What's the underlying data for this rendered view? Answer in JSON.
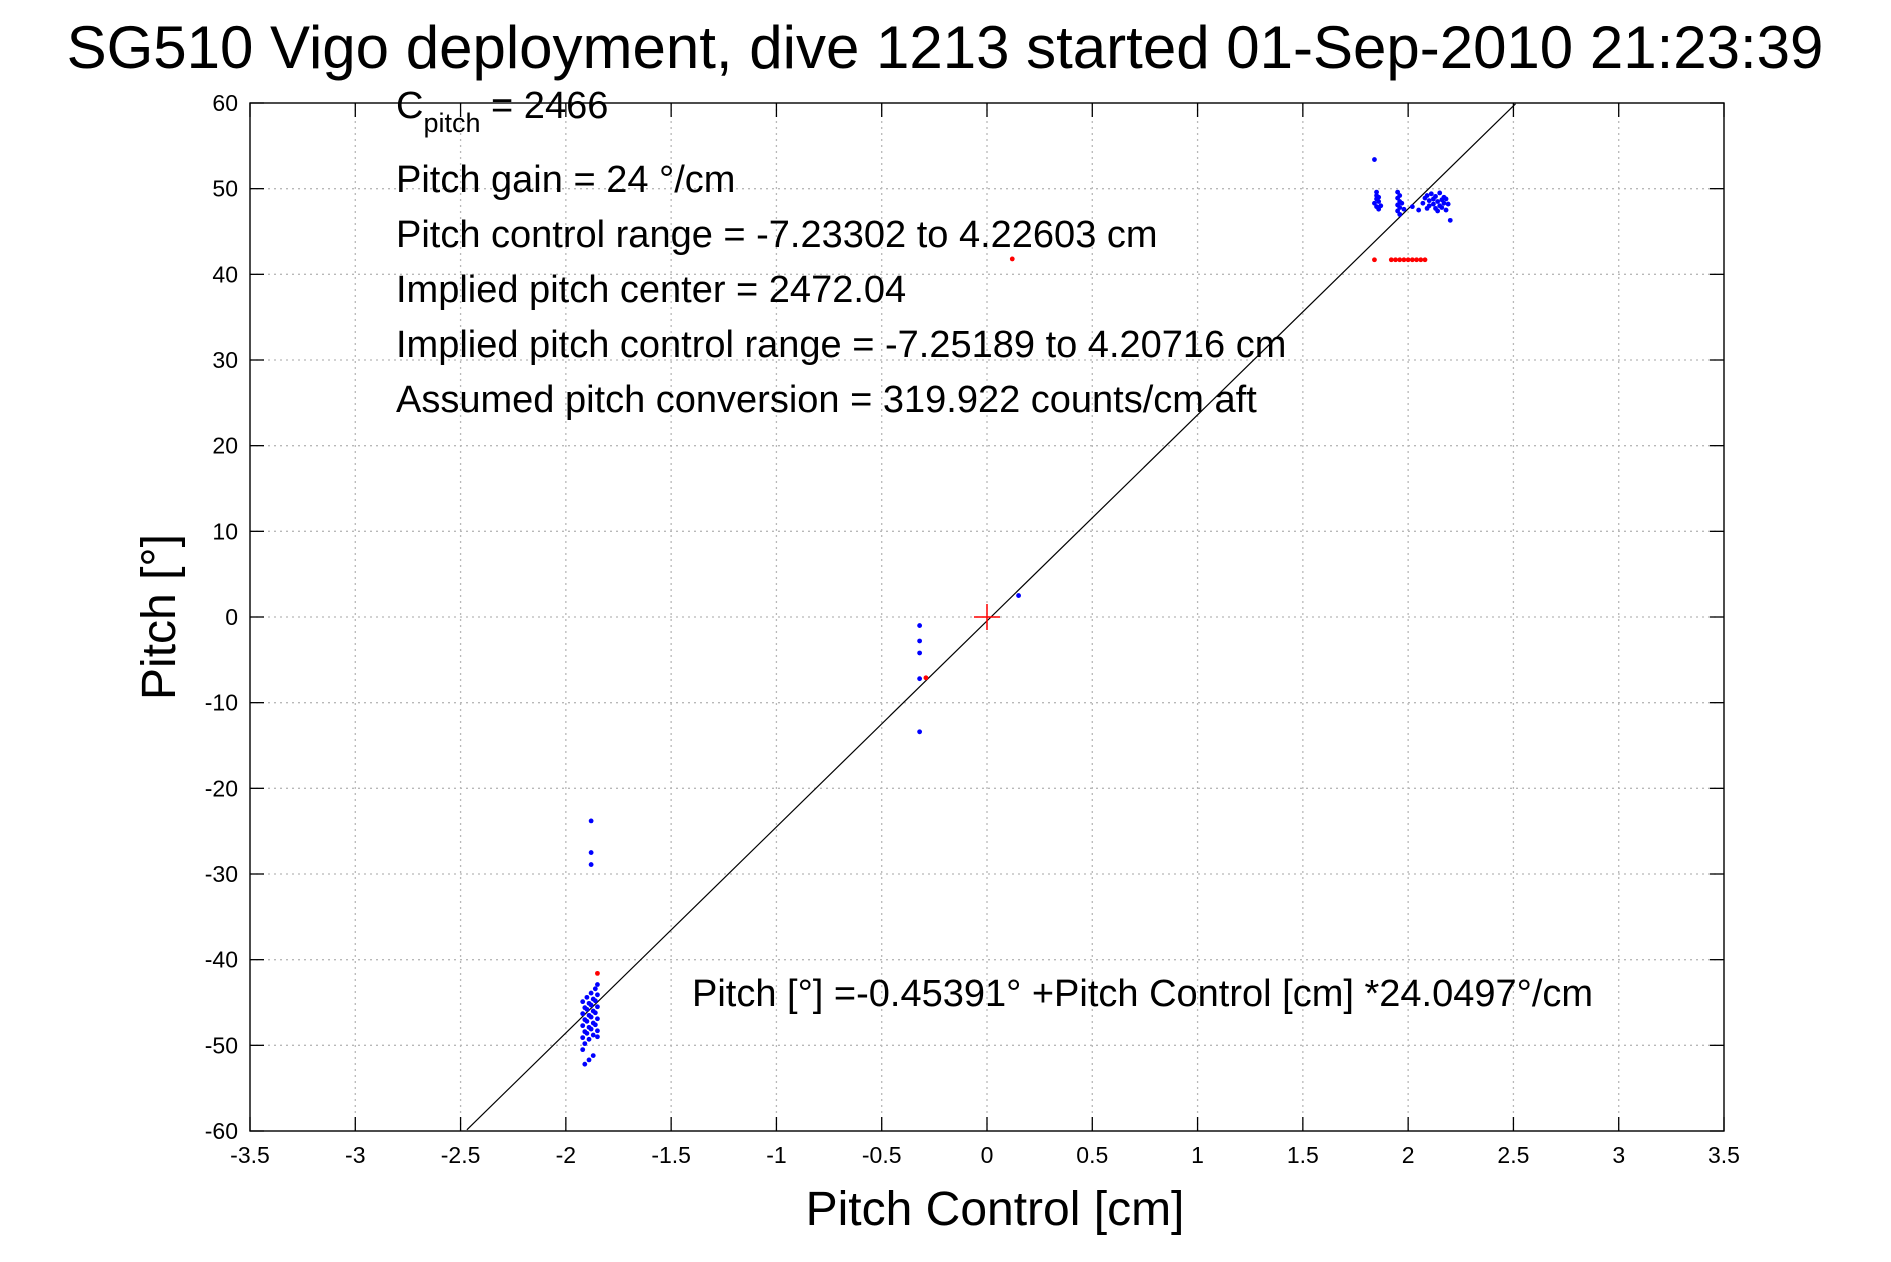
{
  "chart_data": {
    "type": "scatter",
    "title": "SG510 Vigo deployment, dive 1213 started 01-Sep-2010 21:23:39",
    "xlabel": "Pitch Control [cm]",
    "ylabel": "Pitch [°]",
    "xlim": [
      -3.5,
      3.5
    ],
    "ylim": [
      -60,
      60
    ],
    "grid": true,
    "x_ticks": [
      "-3.5",
      "-3",
      "-2.5",
      "-2",
      "-1.5",
      "-1",
      "-0.5",
      "0",
      "0.5",
      "1",
      "1.5",
      "2",
      "2.5",
      "3",
      "3.5"
    ],
    "y_ticks": [
      "60",
      "50",
      "40",
      "30",
      "20",
      "10",
      "0",
      "-10",
      "-20",
      "-30",
      "-40",
      "-50",
      "-60"
    ],
    "colors": {
      "observed": "#0000ff",
      "flagged": "#ff0000",
      "fit_line": "#000000",
      "center_marker": "#ff0000",
      "grid": "#b8b8b8"
    },
    "annotations": {
      "c_pitch_main": "C",
      "c_pitch_sub": "pitch",
      "c_pitch_value": " = 2466",
      "pitch_gain": "Pitch gain = 24 °/cm",
      "pitch_control_range": "Pitch control range = -7.23302 to 4.22603 cm",
      "implied_pitch_center": "Implied pitch center = 2472.04",
      "implied_pitch_control_range": "Implied pitch control range = -7.25189 to 4.20716 cm",
      "assumed_pitch_conversion": "Assumed pitch conversion = 319.922 counts/cm aft",
      "fit_equation": "Pitch [°] =-0.45391° +Pitch Control [cm] *24.0497°/cm"
    },
    "fit_line": {
      "intercept": -0.45391,
      "slope": 24.0497,
      "x": [
        -2.47,
        2.51
      ]
    },
    "center_marker": {
      "x": 0,
      "y": 0
    },
    "series": [
      {
        "marker": "dot",
        "color": "#0000ff",
        "points": [
          [
            1.84,
            53.4
          ],
          [
            1.85,
            49.6
          ],
          [
            1.85,
            49.2
          ],
          [
            1.85,
            48.8
          ],
          [
            1.86,
            48.5
          ],
          [
            1.84,
            48.3
          ],
          [
            1.87,
            48.0
          ],
          [
            1.86,
            47.6
          ],
          [
            1.85,
            47.9
          ],
          [
            1.86,
            49.0
          ],
          [
            1.95,
            49.6
          ],
          [
            1.96,
            49.2
          ],
          [
            1.95,
            48.9
          ],
          [
            1.96,
            48.5
          ],
          [
            1.95,
            48.1
          ],
          [
            1.96,
            47.8
          ],
          [
            1.95,
            47.4
          ],
          [
            1.96,
            47.0
          ],
          [
            1.97,
            48.3
          ],
          [
            1.98,
            47.6
          ],
          [
            2.02,
            47.9
          ],
          [
            2.05,
            47.5
          ],
          [
            2.07,
            48.3
          ],
          [
            2.08,
            48.9
          ],
          [
            2.09,
            49.2
          ],
          [
            2.1,
            48.6
          ],
          [
            2.1,
            48.0
          ],
          [
            2.11,
            49.4
          ],
          [
            2.12,
            48.8
          ],
          [
            2.12,
            48.2
          ],
          [
            2.13,
            47.7
          ],
          [
            2.13,
            49.1
          ],
          [
            2.14,
            48.5
          ],
          [
            2.14,
            47.4
          ],
          [
            2.15,
            49.5
          ],
          [
            2.15,
            48.0
          ],
          [
            2.16,
            48.7
          ],
          [
            2.16,
            47.8
          ],
          [
            2.17,
            49.0
          ],
          [
            2.17,
            48.3
          ],
          [
            2.18,
            47.5
          ],
          [
            2.18,
            48.8
          ],
          [
            2.19,
            48.2
          ],
          [
            2.2,
            46.3
          ],
          [
            2.09,
            47.7
          ],
          [
            -1.88,
            -23.8
          ],
          [
            -1.88,
            -27.5
          ],
          [
            -1.88,
            -28.9
          ],
          [
            -1.92,
            -44.9
          ],
          [
            -1.91,
            -45.6
          ],
          [
            -1.92,
            -46.3
          ],
          [
            -1.91,
            -47.0
          ],
          [
            -1.92,
            -47.7
          ],
          [
            -1.91,
            -48.4
          ],
          [
            -1.92,
            -49.1
          ],
          [
            -1.91,
            -49.8
          ],
          [
            -1.92,
            -50.5
          ],
          [
            -1.91,
            -52.2
          ],
          [
            -1.9,
            -44.4
          ],
          [
            -1.89,
            -45.1
          ],
          [
            -1.9,
            -45.8
          ],
          [
            -1.89,
            -46.5
          ],
          [
            -1.9,
            -47.2
          ],
          [
            -1.89,
            -47.9
          ],
          [
            -1.9,
            -48.6
          ],
          [
            -1.89,
            -49.3
          ],
          [
            -1.89,
            -51.7
          ],
          [
            -1.88,
            -43.9
          ],
          [
            -1.87,
            -44.6
          ],
          [
            -1.88,
            -45.3
          ],
          [
            -1.87,
            -46.0
          ],
          [
            -1.88,
            -46.7
          ],
          [
            -1.87,
            -47.4
          ],
          [
            -1.88,
            -48.1
          ],
          [
            -1.87,
            -48.8
          ],
          [
            -1.87,
            -51.2
          ],
          [
            -1.86,
            -43.4
          ],
          [
            -1.85,
            -44.1
          ],
          [
            -1.86,
            -44.8
          ],
          [
            -1.85,
            -45.5
          ],
          [
            -1.86,
            -46.2
          ],
          [
            -1.85,
            -46.9
          ],
          [
            -1.86,
            -47.6
          ],
          [
            -1.85,
            -49.0
          ],
          [
            -1.85,
            -42.9
          ],
          [
            -1.85,
            -48.3
          ],
          [
            -0.32,
            -1.0
          ],
          [
            -0.32,
            -2.8
          ],
          [
            -0.32,
            -4.2
          ],
          [
            -0.32,
            -7.2
          ],
          [
            -0.32,
            -13.4
          ],
          [
            0.15,
            2.5
          ]
        ]
      },
      {
        "marker": "dot",
        "color": "#ff0000",
        "points": [
          [
            1.84,
            41.7
          ],
          [
            1.92,
            41.7
          ],
          [
            1.94,
            41.7
          ],
          [
            1.96,
            41.7
          ],
          [
            1.98,
            41.7
          ],
          [
            2.0,
            41.7
          ],
          [
            2.02,
            41.7
          ],
          [
            2.04,
            41.7
          ],
          [
            2.06,
            41.7
          ],
          [
            2.08,
            41.7
          ],
          [
            0.12,
            41.8
          ],
          [
            -1.85,
            -41.6
          ],
          [
            -0.29,
            -7.1
          ]
        ]
      }
    ]
  }
}
